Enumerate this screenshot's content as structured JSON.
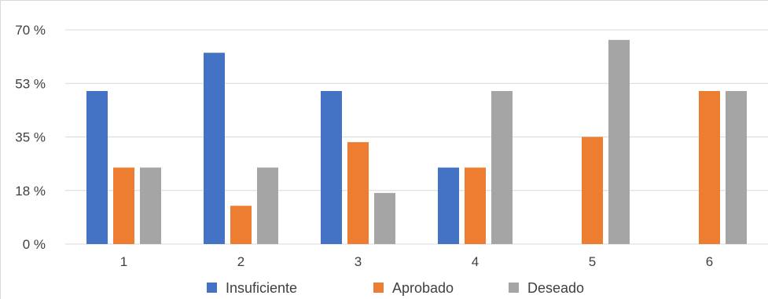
{
  "chart_data": {
    "type": "bar",
    "title": "",
    "xlabel": "",
    "ylabel": "",
    "categories": [
      "1",
      "2",
      "3",
      "4",
      "5",
      "6"
    ],
    "y_ticks": [
      "0 %",
      "18 %",
      "35 %",
      "53 %",
      "70 %"
    ],
    "ylim": [
      0,
      70
    ],
    "grid": true,
    "legend_position": "bottom",
    "series": [
      {
        "name": "Insuficiente",
        "color": "#4472c4",
        "values": [
          50,
          62.5,
          50,
          25,
          0,
          0
        ]
      },
      {
        "name": "Aprobado",
        "color": "#ed7d31",
        "values": [
          25,
          12.5,
          33.3,
          25,
          35,
          50
        ]
      },
      {
        "name": "Deseado",
        "color": "#a5a5a5",
        "values": [
          25,
          25,
          16.7,
          50,
          66.7,
          50
        ]
      }
    ]
  }
}
